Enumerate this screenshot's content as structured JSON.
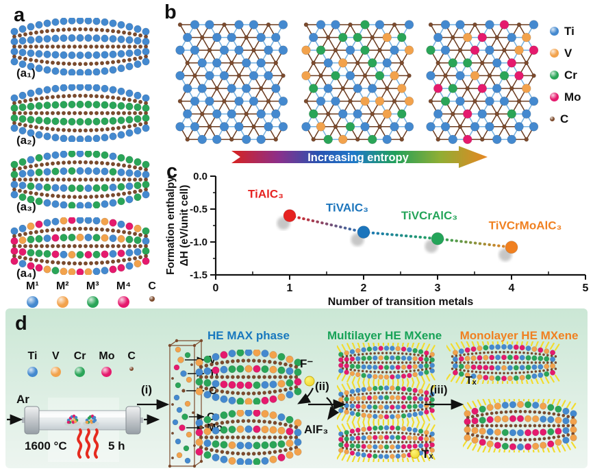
{
  "colors": {
    "ti_blue": "#4489cf",
    "v_orange": "#f2a24c",
    "cr_green": "#2aa558",
    "mo_pink": "#e51a6d",
    "c_brown": "#7c4a2c",
    "termination_yellow": "#f2dc2e",
    "panel_d_bg_top": "#cbe7d5",
    "panel_d_bg_bottom": "#edf5f0",
    "entropy_gradient": [
      "#d8221f",
      "#8c2f8a",
      "#2b52b0",
      "#1f78c8",
      "#22a05a",
      "#8fae34",
      "#ee8220"
    ]
  },
  "panel_a": {
    "label": "a",
    "structures": [
      {
        "label": "(a₁)",
        "metals": [
          "ti_blue"
        ],
        "layered": true
      },
      {
        "label": "(a₂)",
        "metals": [
          "ti_blue",
          "cr_green"
        ],
        "layered": true
      },
      {
        "label": "(a₃)",
        "metals": [
          "ti_blue",
          "cr_green"
        ],
        "layered": false
      },
      {
        "label": "(a₄)",
        "metals": [
          "ti_blue",
          "v_orange",
          "cr_green",
          "mo_pink"
        ],
        "layered": false
      }
    ],
    "legend": [
      {
        "label": "M¹",
        "color": "ti_blue"
      },
      {
        "label": "M²",
        "color": "v_orange"
      },
      {
        "label": "M³",
        "color": "cr_green"
      },
      {
        "label": "M⁴",
        "color": "mo_pink"
      },
      {
        "label": "C",
        "color": "c_brown"
      }
    ]
  },
  "panel_b": {
    "label": "b",
    "entropy_label": "Increasing entropy",
    "legend": [
      {
        "symbol": "Ti",
        "color": "ti_blue"
      },
      {
        "symbol": "V",
        "color": "v_orange"
      },
      {
        "symbol": "Cr",
        "color": "cr_green"
      },
      {
        "symbol": "Mo",
        "color": "mo_pink"
      },
      {
        "symbol": "C",
        "color": "c_brown"
      }
    ],
    "lattices": [
      {
        "name": "one transition metal",
        "weights": {
          "ti_blue": 1
        }
      },
      {
        "name": "three transition metals",
        "weights": {
          "ti_blue": 0.56,
          "v_orange": 0.22,
          "cr_green": 0.22
        }
      },
      {
        "name": "four transition metals",
        "weights": {
          "ti_blue": 0.45,
          "v_orange": 0.14,
          "cr_green": 0.23,
          "mo_pink": 0.18
        }
      }
    ]
  },
  "panel_c": {
    "label": "c"
  },
  "chart_data": {
    "type": "scatter",
    "xlabel": "Number of transition metals",
    "ylabel": "Formation enthalpy ΔH (eV/unit cell)",
    "ylabel_lines": [
      "Formation enthalpy",
      "ΔH (eV/unit cell)"
    ],
    "xlim": [
      0,
      5
    ],
    "ylim": [
      -1.5,
      0
    ],
    "xticks": [
      0,
      1,
      2,
      3,
      4,
      5
    ],
    "yticks": [
      0,
      -0.5,
      -1,
      -1.5
    ],
    "ytick_labels": [
      "0.0",
      "-0.5",
      "-1.0",
      "-1.5"
    ],
    "grid": false,
    "legend_position": "none",
    "line_style": "dotted",
    "points": [
      {
        "label": "TiAlC₃",
        "x": 1,
        "y": -0.6,
        "color": "#e62220"
      },
      {
        "label": "TiVAlC₃",
        "x": 2,
        "y": -0.85,
        "color": "#1c75bc"
      },
      {
        "label": "TiVCrAlC₃",
        "x": 3,
        "y": -0.95,
        "color": "#24a459"
      },
      {
        "label": "TiVCrMoAlC₃",
        "x": 4,
        "y": -1.08,
        "color": "#f08020"
      }
    ]
  },
  "panel_d": {
    "label": "d",
    "slab": {
      "metals": [
        "ti_blue",
        "v_orange",
        "cr_green",
        "mo_pink"
      ]
    },
    "legend": [
      {
        "symbol": "Ti",
        "color": "ti_blue"
      },
      {
        "symbol": "V",
        "color": "v_orange"
      },
      {
        "symbol": "Cr",
        "color": "cr_green"
      },
      {
        "symbol": "Mo",
        "color": "mo_pink"
      },
      {
        "symbol": "C",
        "color": "c_brown"
      }
    ],
    "carrier_gas": "Ar",
    "temperature": "1600 °C",
    "duration": "5 h",
    "steps": [
      "(i)",
      "(ii)",
      "(iii)"
    ],
    "unit_cell_labels": [
      "V",
      "Ti",
      "C",
      "Cr",
      "Mo"
    ],
    "phase_titles": [
      {
        "text": "HE MAX phase",
        "color": "#1878be"
      },
      {
        "text": "Multilayer HE MXene",
        "color": "#17a257"
      },
      {
        "text": "Monolayer HE MXene",
        "color": "#f08020"
      }
    ],
    "etchant": "F⁻",
    "byproduct": "AlF₃",
    "termination": "Tₓ"
  }
}
